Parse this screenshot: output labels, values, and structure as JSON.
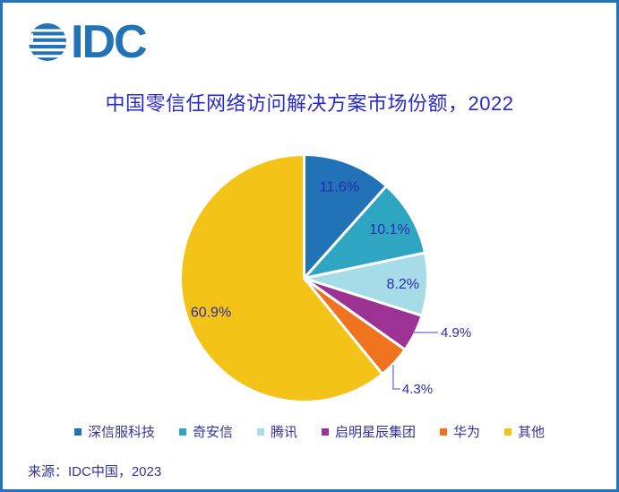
{
  "page": {
    "border_color": "#2473B9",
    "background": "#FFFFFF"
  },
  "logo": {
    "text": "IDC",
    "color": "#2272B8"
  },
  "title": {
    "text": "中国零信任网络访问解决方案市场份额，2022",
    "color": "#2A2ACB"
  },
  "source": {
    "text": "来源：IDC中国，2023",
    "color": "#32329C"
  },
  "chart_data": {
    "type": "pie",
    "title": "中国零信任网络访问解决方案市场份额，2022",
    "start_angle_deg": 0,
    "direction": "clockwise",
    "slices": [
      {
        "label": "深信服科技",
        "value": 11.6,
        "pct_label": "11.6%",
        "color": "#2272B8",
        "label_placement": "inside"
      },
      {
        "label": "奇安信",
        "value": 10.1,
        "pct_label": "10.1%",
        "color": "#2EA6C1",
        "label_placement": "inside"
      },
      {
        "label": "腾讯",
        "value": 8.2,
        "pct_label": "8.2%",
        "color": "#A6DBE8",
        "label_placement": "inside"
      },
      {
        "label": "启明星辰集团",
        "value": 4.9,
        "pct_label": "4.9%",
        "color": "#9C3394",
        "label_placement": "outside"
      },
      {
        "label": "华为",
        "value": 4.3,
        "pct_label": "4.3%",
        "color": "#F0741F",
        "label_placement": "outside"
      },
      {
        "label": "其他",
        "value": 60.9,
        "pct_label": "60.9%",
        "color": "#F3C317",
        "label_placement": "inside"
      }
    ],
    "pct_label_color": "#2B2BAB",
    "leader_line_color": "#8787E8",
    "legend_position": "bottom",
    "legend_text_color": "#32329C",
    "slice_separator_color": "#FFFFFF"
  }
}
